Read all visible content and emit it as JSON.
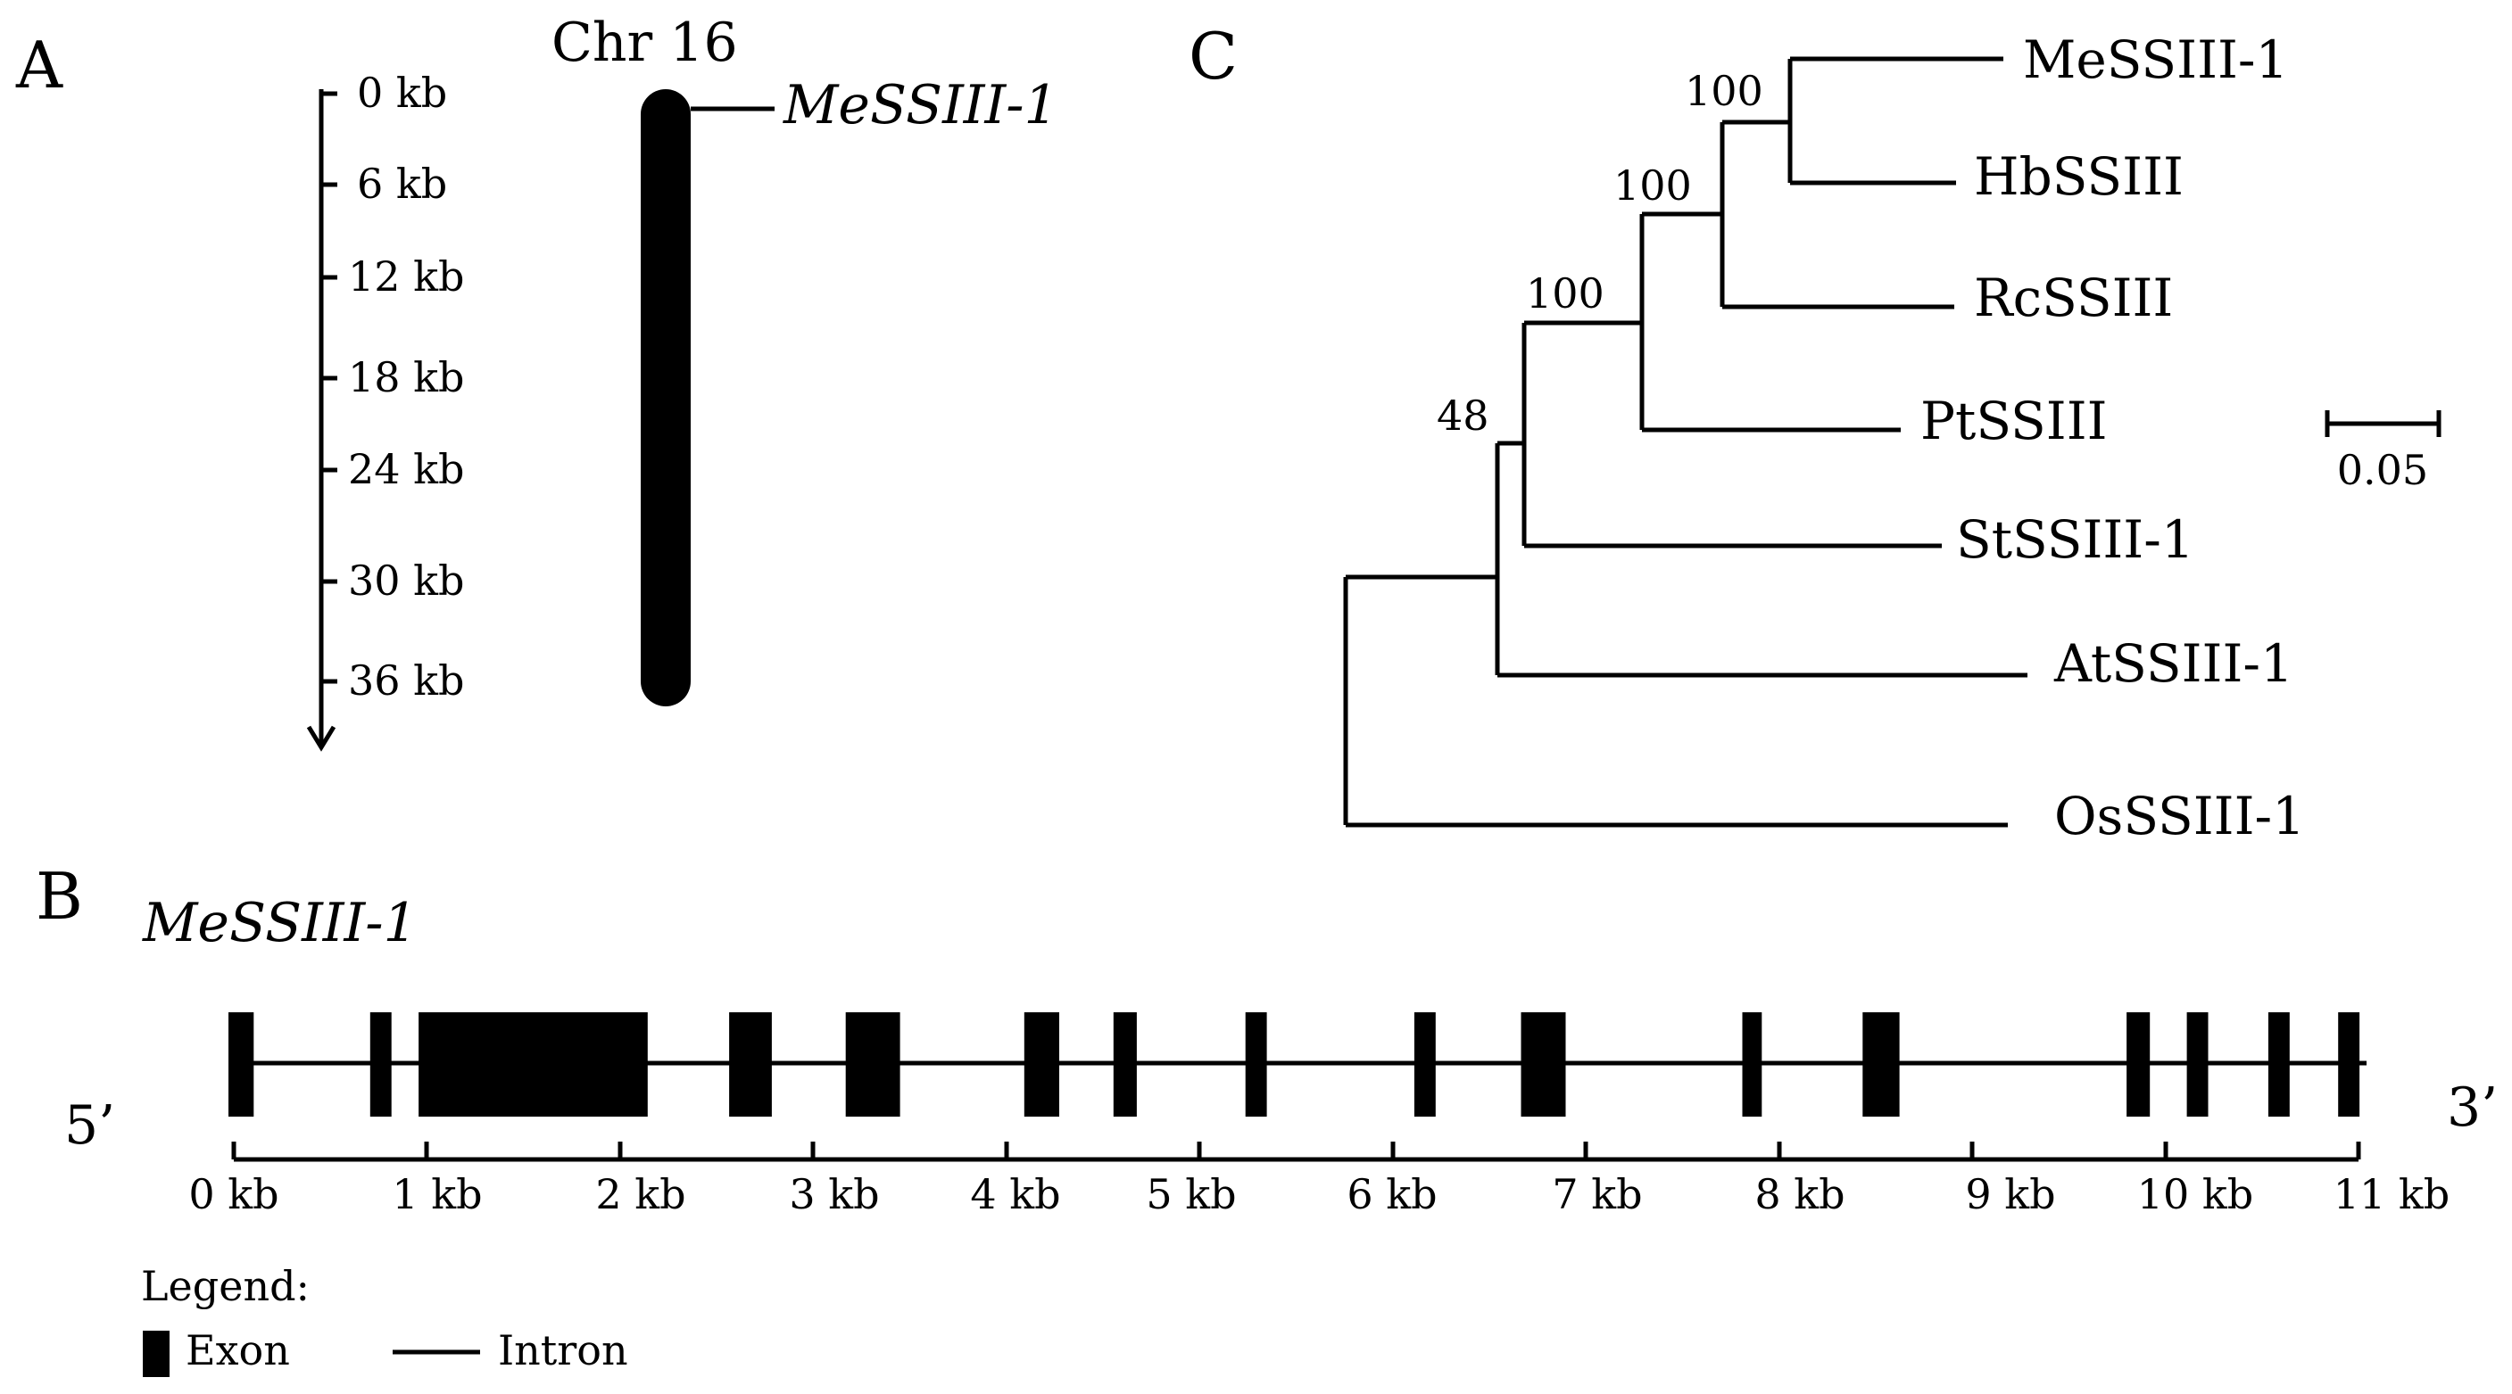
{
  "panels": {
    "a": "A",
    "b": "B",
    "c": "C"
  },
  "panel_a": {
    "chromosome": "Chr 16",
    "gene_label": "MeSSIII-1",
    "ticks": [
      "0 kb",
      "6 kb",
      "12 kb",
      "18 kb",
      "24 kb",
      "30 kb",
      "36 kb"
    ]
  },
  "panel_b": {
    "gene_label": "MeSSIII-1",
    "five_prime": "5’",
    "three_prime": "3’",
    "scale_ticks": [
      "0 kb",
      "1 kb",
      "2 kb",
      "3 kb",
      "4 kb",
      "5 kb",
      "6 kb",
      "7 kb",
      "8 kb",
      "9 kb",
      "10 kb",
      "11 kb"
    ],
    "exons_kb": [
      [
        0.0,
        0.13
      ],
      [
        0.73,
        0.84
      ],
      [
        0.98,
        2.16
      ],
      [
        2.58,
        2.8
      ],
      [
        3.18,
        3.46
      ],
      [
        4.1,
        4.28
      ],
      [
        4.56,
        4.68
      ],
      [
        5.24,
        5.35
      ],
      [
        6.11,
        6.22
      ],
      [
        6.66,
        6.89
      ],
      [
        7.8,
        7.9
      ],
      [
        8.42,
        8.61
      ],
      [
        9.78,
        9.9
      ],
      [
        10.09,
        10.2
      ],
      [
        10.51,
        10.62
      ],
      [
        10.87,
        10.98
      ]
    ],
    "legend_title": "Legend:",
    "legend_exon": "Exon",
    "legend_intron": "Intron"
  },
  "panel_c": {
    "taxa": [
      "MeSSIII-1",
      "HbSSIII",
      "RcSSIII",
      "PtSSIII",
      "StSSIII-1",
      "AtSSIII-1",
      "OsSSIII-1"
    ],
    "bootstrap": [
      "100",
      "100",
      "100",
      "48"
    ],
    "scale_label": "0.05"
  }
}
